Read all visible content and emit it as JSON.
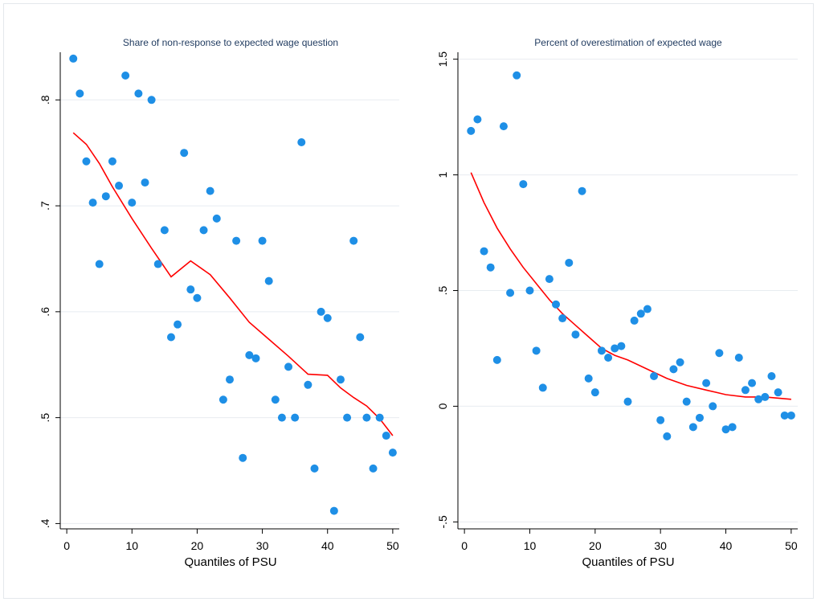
{
  "chart_data": [
    {
      "type": "scatter",
      "title": "Share of non-response to expected wage question",
      "xlabel": "Quantiles of PSU",
      "ylabel": "",
      "xlim": [
        -1,
        51
      ],
      "ylim": [
        0.395,
        0.845
      ],
      "xticks": [
        0,
        10,
        20,
        30,
        40,
        50
      ],
      "yticks": [
        0.4,
        0.5,
        0.6,
        0.7,
        0.8
      ],
      "ytick_labels": [
        ".4",
        ".5",
        ".6",
        ".7",
        ".8"
      ],
      "grid": true,
      "colors": {
        "points": "#1e8fe6",
        "fit": "#ff0000",
        "grid": "#e8ecf0"
      },
      "series": [
        {
          "kind": "points",
          "x": [
            1,
            2,
            3,
            4,
            5,
            6,
            7,
            8,
            9,
            10,
            11,
            12,
            13,
            14,
            15,
            16,
            17,
            18,
            19,
            20,
            21,
            22,
            23,
            24,
            25,
            26,
            27,
            28,
            29,
            30,
            31,
            32,
            33,
            34,
            35,
            36,
            37,
            38,
            39,
            40,
            41,
            42,
            43,
            44,
            45,
            46,
            47,
            48,
            49,
            50
          ],
          "y": [
            0.839,
            0.806,
            0.742,
            0.703,
            0.645,
            0.709,
            0.742,
            0.719,
            0.823,
            0.703,
            0.806,
            0.722,
            0.8,
            0.645,
            0.677,
            0.576,
            0.588,
            0.75,
            0.621,
            0.613,
            0.677,
            0.714,
            0.688,
            0.517,
            0.536,
            0.667,
            0.462,
            0.559,
            0.556,
            0.667,
            0.629,
            0.517,
            0.5,
            0.548,
            0.5,
            0.76,
            0.531,
            0.452,
            0.6,
            0.594,
            0.412,
            0.536,
            0.5,
            0.667,
            0.576,
            0.5,
            0.452,
            0.5,
            0.483,
            0.467
          ]
        },
        {
          "kind": "fit",
          "x": [
            1,
            3,
            5,
            7,
            10,
            13,
            16,
            19,
            22,
            25,
            28,
            31,
            34,
            37,
            40,
            42,
            44,
            46,
            48,
            50
          ],
          "y": [
            0.769,
            0.758,
            0.74,
            0.718,
            0.688,
            0.66,
            0.633,
            0.648,
            0.635,
            0.613,
            0.59,
            0.574,
            0.558,
            0.541,
            0.54,
            0.528,
            0.519,
            0.511,
            0.499,
            0.483
          ]
        }
      ]
    },
    {
      "type": "scatter",
      "title": "Percent of overestimation of expected wage",
      "xlabel": "Quantiles of PSU",
      "ylabel": "",
      "xlim": [
        -1,
        51
      ],
      "ylim": [
        -0.53,
        1.53
      ],
      "xticks": [
        0,
        10,
        20,
        30,
        40,
        50
      ],
      "yticks": [
        -0.5,
        0,
        0.5,
        1,
        1.5
      ],
      "ytick_labels": [
        "-.5",
        "0",
        ".5",
        "1",
        "1.5"
      ],
      "grid": true,
      "colors": {
        "points": "#1e8fe6",
        "fit": "#ff0000",
        "grid": "#e8ecf0"
      },
      "series": [
        {
          "kind": "points",
          "x": [
            1,
            2,
            3,
            4,
            5,
            6,
            7,
            8,
            9,
            10,
            11,
            12,
            13,
            14,
            15,
            16,
            17,
            18,
            19,
            20,
            21,
            22,
            23,
            24,
            25,
            26,
            27,
            28,
            29,
            30,
            31,
            32,
            33,
            34,
            35,
            36,
            37,
            38,
            39,
            40,
            41,
            42,
            43,
            44,
            45,
            46,
            47,
            48,
            49,
            50
          ],
          "y": [
            1.19,
            1.24,
            0.67,
            0.6,
            0.2,
            1.21,
            0.49,
            1.43,
            0.96,
            0.5,
            0.24,
            0.08,
            0.55,
            0.44,
            0.38,
            0.62,
            0.31,
            0.93,
            0.12,
            0.06,
            0.24,
            0.21,
            0.25,
            0.26,
            0.02,
            0.37,
            0.4,
            0.42,
            0.13,
            -0.06,
            -0.13,
            0.16,
            0.19,
            0.02,
            -0.09,
            -0.05,
            0.1,
            0.0,
            0.23,
            -0.1,
            -0.09,
            0.21,
            0.07,
            0.1,
            0.03,
            0.04,
            0.13,
            0.06,
            -0.04,
            -0.04
          ]
        },
        {
          "kind": "fit",
          "x": [
            1,
            3,
            5,
            7,
            9,
            11,
            13,
            15,
            17,
            19,
            21,
            23,
            25,
            28,
            31,
            34,
            37,
            40,
            43,
            46,
            50
          ],
          "y": [
            1.01,
            0.88,
            0.77,
            0.68,
            0.6,
            0.53,
            0.46,
            0.4,
            0.35,
            0.3,
            0.25,
            0.22,
            0.2,
            0.16,
            0.12,
            0.09,
            0.07,
            0.05,
            0.04,
            0.04,
            0.03
          ]
        }
      ]
    }
  ]
}
